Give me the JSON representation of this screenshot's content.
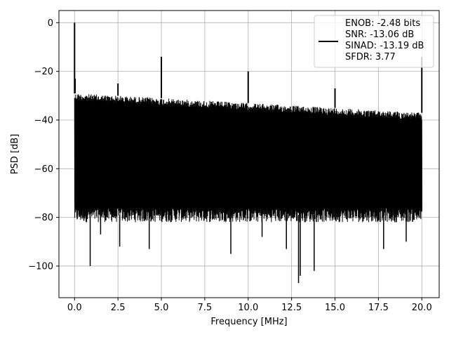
{
  "chart_data": {
    "type": "line",
    "xlabel": "Frequency [MHz]",
    "ylabel": "PSD [dB]",
    "xlim": [
      -0.9,
      21.0
    ],
    "ylim": [
      -113,
      5
    ],
    "xticks": [
      0.0,
      2.5,
      5.0,
      7.5,
      10.0,
      12.5,
      15.0,
      17.5,
      20.0
    ],
    "xtick_labels": [
      "0.0",
      "2.5",
      "5.0",
      "7.5",
      "10.0",
      "12.5",
      "15.0",
      "17.5",
      "20.0"
    ],
    "yticks": [
      0,
      -20,
      -40,
      -60,
      -80,
      -100
    ],
    "ytick_labels": [
      "0",
      "−20",
      "−40",
      "−60",
      "−80",
      "−100"
    ],
    "grid": true,
    "legend_position": "top-right",
    "legend_lines": [
      "ENOB: -2.48 bits",
      "SNR: -13.06 dB",
      "SINAD: -13.19 dB",
      "SFDR: 3.77"
    ],
    "series": [
      {
        "color": "#000000",
        "noise_floor": {
          "x_range": [
            0.0,
            20.0
          ],
          "upper_envelope_start": -29,
          "upper_envelope_end": -37,
          "lower_envelope": -79,
          "typical_band": [
            -35,
            -75
          ]
        },
        "spikes": [
          {
            "x": 0.0,
            "y": 0
          },
          {
            "x": 0.03,
            "y": -23
          },
          {
            "x": 2.5,
            "y": -25
          },
          {
            "x": 5.0,
            "y": -14
          },
          {
            "x": 10.0,
            "y": -20
          },
          {
            "x": 15.0,
            "y": -27
          },
          {
            "x": 20.0,
            "y": -14
          }
        ],
        "dips": [
          {
            "x": 0.9,
            "y": -100
          },
          {
            "x": 1.5,
            "y": -87
          },
          {
            "x": 2.6,
            "y": -92
          },
          {
            "x": 4.3,
            "y": -93
          },
          {
            "x": 9.0,
            "y": -95
          },
          {
            "x": 10.8,
            "y": -88
          },
          {
            "x": 12.2,
            "y": -93
          },
          {
            "x": 12.9,
            "y": -107
          },
          {
            "x": 13.0,
            "y": -104
          },
          {
            "x": 13.8,
            "y": -102
          },
          {
            "x": 17.8,
            "y": -93
          },
          {
            "x": 19.1,
            "y": -90
          }
        ]
      }
    ]
  }
}
